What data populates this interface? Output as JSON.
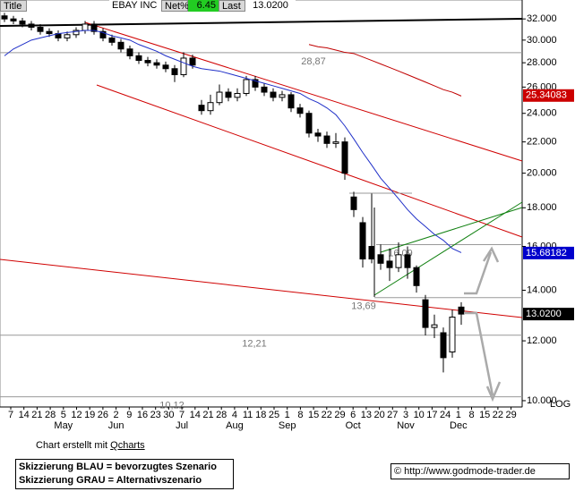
{
  "header": {
    "title_tab": "Title",
    "symbol": "EBAY INC",
    "net_label": "Net%",
    "net_value": "6.45",
    "last_label": "Last",
    "last_value": "13.0200"
  },
  "chart_data": {
    "type": "candlestick",
    "log_scale": true,
    "scale_label": "LOG",
    "ylim": [
      9.81,
      33.9
    ],
    "yticks": [
      {
        "value": 10,
        "label": "10.000"
      },
      {
        "value": 12,
        "label": "12.000"
      },
      {
        "value": 14,
        "label": "14.000"
      },
      {
        "value": 16,
        "label": "16.000"
      },
      {
        "value": 18,
        "label": "18.000"
      },
      {
        "value": 20,
        "label": "20.000"
      },
      {
        "value": 22,
        "label": "22.000"
      },
      {
        "value": 24,
        "label": "24.000"
      },
      {
        "value": 26,
        "label": "26.000"
      },
      {
        "value": 28,
        "label": "28.000"
      },
      {
        "value": 30,
        "label": "30.000"
      },
      {
        "value": 32,
        "label": "32.000"
      }
    ],
    "date_labels": [
      "7",
      "14",
      "21",
      "28",
      "5",
      "12",
      "19",
      "26",
      "2",
      "9",
      "16",
      "23",
      "30",
      "7",
      "14",
      "21",
      "28",
      "4",
      "11",
      "18",
      "25",
      "1",
      "8",
      "15",
      "22",
      "29",
      "6",
      "13",
      "20",
      "27",
      "3",
      "10",
      "17",
      "24",
      "1",
      "8",
      "15",
      "22",
      "29"
    ],
    "months": [
      "May",
      "Jun",
      "Jul",
      "Aug",
      "Sep",
      "Oct",
      "Nov",
      "Dec"
    ],
    "up_color": "#ffffff",
    "down_color": "#000000",
    "ohlc": [
      [
        32.3,
        32.6,
        31.7,
        32.0
      ],
      [
        32.0,
        32.3,
        31.5,
        31.8
      ],
      [
        31.8,
        32.1,
        31.2,
        31.5
      ],
      [
        31.5,
        31.8,
        30.9,
        31.2
      ],
      [
        31.2,
        31.5,
        30.5,
        30.8
      ],
      [
        30.8,
        31.1,
        30.3,
        30.6
      ],
      [
        30.6,
        30.9,
        29.9,
        30.2
      ],
      [
        30.2,
        30.8,
        29.9,
        30.5
      ],
      [
        30.5,
        31.2,
        30.2,
        30.9
      ],
      [
        30.9,
        31.8,
        30.6,
        31.5
      ],
      [
        31.5,
        31.8,
        30.5,
        30.8
      ],
      [
        30.8,
        31.1,
        29.9,
        30.2
      ],
      [
        30.2,
        30.5,
        29.5,
        29.8
      ],
      [
        29.8,
        30.1,
        28.9,
        29.2
      ],
      [
        29.2,
        29.5,
        28.3,
        28.6
      ],
      [
        28.6,
        28.9,
        27.9,
        28.2
      ],
      [
        28.2,
        28.5,
        27.7,
        28.0
      ],
      [
        28.0,
        28.3,
        27.5,
        27.8
      ],
      [
        27.8,
        28.1,
        27.2,
        27.5
      ],
      [
        27.5,
        27.8,
        26.4,
        27.0
      ],
      [
        27.0,
        28.9,
        26.8,
        28.4
      ],
      [
        28.4,
        28.7,
        27.5,
        27.8
      ],
      [
        24.6,
        25.0,
        23.9,
        24.2
      ],
      [
        24.2,
        25.4,
        23.9,
        24.8
      ],
      [
        24.8,
        26.2,
        24.6,
        25.6
      ],
      [
        25.6,
        25.9,
        24.9,
        25.2
      ],
      [
        25.2,
        25.9,
        24.9,
        25.5
      ],
      [
        25.5,
        26.9,
        25.3,
        26.6
      ],
      [
        26.6,
        26.9,
        25.7,
        26.0
      ],
      [
        26.0,
        26.3,
        25.3,
        25.6
      ],
      [
        25.6,
        25.9,
        24.9,
        25.2
      ],
      [
        25.2,
        25.7,
        24.9,
        25.4
      ],
      [
        25.4,
        25.6,
        24.1,
        24.4
      ],
      [
        24.4,
        24.7,
        23.7,
        24.0
      ],
      [
        24.0,
        24.2,
        22.3,
        22.6
      ],
      [
        22.6,
        22.9,
        22.0,
        22.4
      ],
      [
        22.4,
        22.7,
        21.6,
        21.9
      ],
      [
        21.9,
        22.6,
        21.6,
        22.0
      ],
      [
        22.0,
        22.3,
        19.6,
        20.0
      ],
      [
        18.6,
        18.9,
        17.5,
        17.9
      ],
      [
        17.2,
        17.5,
        15.0,
        15.4
      ],
      [
        16.0,
        18.8,
        15.2,
        15.4
      ],
      [
        15.6,
        16.1,
        14.9,
        15.2
      ],
      [
        15.3,
        15.9,
        14.4,
        15.0
      ],
      [
        15.0,
        16.2,
        14.8,
        15.6
      ],
      [
        15.6,
        16.0,
        14.5,
        15.0
      ],
      [
        15.0,
        15.1,
        13.9,
        14.2
      ],
      [
        13.6,
        13.8,
        12.2,
        12.5
      ],
      [
        12.5,
        13.0,
        12.1,
        12.6
      ],
      [
        12.3,
        12.5,
        10.9,
        11.4
      ],
      [
        11.6,
        13.2,
        11.4,
        12.9
      ],
      [
        13.3,
        13.5,
        12.6,
        13.02
      ]
    ],
    "moving_averages": [
      {
        "color": "#2030c8",
        "values": [
          28.6,
          29.2,
          29.6,
          30.0,
          30.2,
          30.4,
          30.6,
          30.7,
          30.8,
          30.9,
          30.9,
          30.7,
          30.4,
          30.2,
          30.0,
          29.6,
          29.3,
          29.0,
          28.6,
          28.3,
          28.0,
          27.7,
          27.5,
          27.4,
          27.3,
          27.1,
          26.9,
          26.7,
          26.5,
          26.3,
          26.1,
          25.9,
          25.7,
          25.5,
          25.1,
          24.8,
          24.4,
          23.9,
          23.1,
          22.2,
          21.3,
          20.5,
          19.7,
          19.1,
          18.5,
          17.9,
          17.4,
          17.0,
          16.6,
          16.3,
          15.9,
          15.7
        ]
      },
      {
        "color": "#c00000",
        "values": [
          null,
          null,
          null,
          null,
          null,
          null,
          null,
          null,
          null,
          null,
          null,
          null,
          null,
          null,
          null,
          null,
          null,
          null,
          null,
          null,
          null,
          null,
          null,
          null,
          null,
          null,
          null,
          null,
          null,
          null,
          null,
          null,
          null,
          null,
          29.6,
          29.4,
          29.3,
          29.1,
          28.9,
          28.8,
          28.5,
          28.2,
          27.9,
          27.6,
          27.3,
          27.0,
          26.7,
          26.4,
          26.1,
          25.8,
          25.6,
          25.3
        ]
      }
    ],
    "levels": [
      {
        "value": 28.87,
        "label": "28,87"
      },
      {
        "value": 16.09,
        "label": "16,09"
      },
      {
        "value": 13.69,
        "label": "13,69"
      },
      {
        "value": 12.21,
        "label": "12,21"
      },
      {
        "value": 10.12,
        "label": "10,12"
      }
    ],
    "price_markers": [
      {
        "value": 25.34083,
        "label": "25.34083",
        "color": "#cc0000"
      },
      {
        "value": 15.68182,
        "label": "15.68182",
        "color": "#0000cc"
      },
      {
        "value": 13.02,
        "label": "13.0200",
        "color": "#000000"
      }
    ]
  },
  "footer": {
    "credit": "Chart erstellt mit",
    "credit_link": "Qcharts",
    "legend_blue": "Skizzierung BLAU = bevorzugtes Szenario",
    "legend_grey": "Skizzierung GRAU = Alternativszenario",
    "source": "© http://www.godmode-trader.de"
  }
}
